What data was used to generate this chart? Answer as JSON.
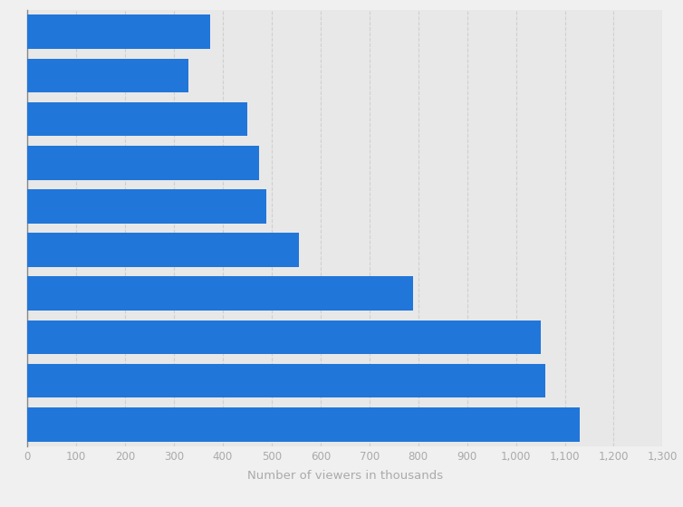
{
  "values": [
    1130,
    1060,
    1050,
    790,
    555,
    490,
    475,
    450,
    330,
    375
  ],
  "bar_color": "#2176d9",
  "background_color": "#f0f0f0",
  "plot_background_color": "#e8e8e8",
  "bar_gap_color": "#ffffff",
  "xlabel": "Number of viewers in thousands",
  "xlim": [
    0,
    1300
  ],
  "xticks": [
    0,
    100,
    200,
    300,
    400,
    500,
    600,
    700,
    800,
    900,
    1000,
    1100,
    1200,
    1300
  ],
  "xtick_labels": [
    "0",
    "100",
    "200",
    "300",
    "400",
    "500",
    "600",
    "700",
    "800",
    "900",
    "1,000",
    "1,100",
    "1,200",
    "1,300"
  ],
  "grid_color": "#d0d0d0",
  "xlabel_fontsize": 9.5,
  "xlabel_color": "#aaaaaa",
  "tick_color": "#aaaaaa",
  "bar_height": 0.78
}
